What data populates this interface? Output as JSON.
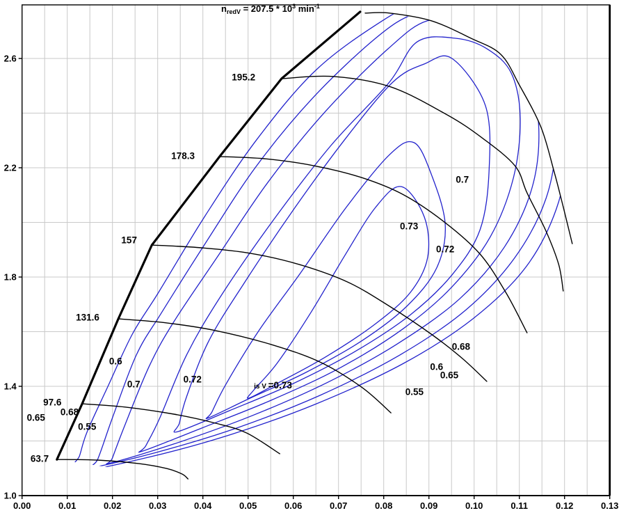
{
  "title": {
    "sym": "n",
    "sym_sub": "redV",
    "eq": " = 207.5 * 10",
    "exp": "3",
    "unit": " min",
    "unit_exp": "-1"
  },
  "chart_data": {
    "type": "line",
    "subtype": "compressor-map-contour",
    "title": "n_redV = 207.5 * 10^3 min^-1",
    "xlabel": "",
    "ylabel": "",
    "xlim": [
      0.0,
      0.13
    ],
    "ylim": [
      1.0,
      2.796
    ],
    "grid": "on",
    "x_tick_step": 0.01,
    "x_grid_step": 0.005,
    "y_grid_step": 0.2,
    "x_tick_labels": [
      "0.00",
      "0.01",
      "0.02",
      "0.03",
      "0.04",
      "0.05",
      "0.06",
      "0.07",
      "0.08",
      "0.09",
      "0.10",
      "0.11",
      "0.12",
      "0.13"
    ],
    "y_tick_values": [
      1.0,
      1.4,
      1.8,
      2.2,
      2.6
    ],
    "y_tick_labels": [
      "1.0",
      "1.4",
      "1.8",
      "2.2",
      "2.6"
    ],
    "colors": {
      "speed_line": "#000000",
      "surge_line": "#000000",
      "contour": "#2222cc",
      "grid": "#c9c9c9",
      "frame": "#000000",
      "text": "#000000"
    },
    "speed_unit": "10^3 min^-1",
    "max_speed_label_value": "207.5",
    "surge_line": [
      [
        0.0077,
        1.132
      ],
      [
        0.0133,
        1.336
      ],
      [
        0.0213,
        1.647
      ],
      [
        0.0287,
        1.917
      ],
      [
        0.0437,
        2.241
      ],
      [
        0.0574,
        2.526
      ],
      [
        0.0748,
        2.771
      ]
    ],
    "envelope": [
      [
        0.0077,
        1.132
      ],
      [
        0.0133,
        1.336
      ],
      [
        0.0213,
        1.647
      ],
      [
        0.0287,
        1.917
      ],
      [
        0.0437,
        2.241
      ],
      [
        0.0574,
        2.526
      ],
      [
        0.0748,
        2.771
      ],
      [
        0.0759,
        2.766
      ],
      [
        0.0813,
        2.766
      ],
      [
        0.0905,
        2.738
      ],
      [
        0.0993,
        2.674
      ],
      [
        0.1059,
        2.615
      ],
      [
        0.11,
        2.503
      ],
      [
        0.1148,
        2.348
      ],
      [
        0.1177,
        2.185
      ],
      [
        0.1197,
        2.057
      ],
      [
        0.1217,
        1.922
      ],
      [
        0.1197,
        1.749
      ],
      [
        0.1117,
        1.596
      ],
      [
        0.1028,
        1.418
      ],
      [
        0.0816,
        1.303
      ],
      [
        0.057,
        1.153
      ],
      [
        0.0367,
        1.061
      ]
    ],
    "speed_lines": [
      {
        "label": "63.7",
        "points": [
          [
            0.0077,
            1.132
          ],
          [
            0.0167,
            1.13
          ],
          [
            0.0259,
            1.117
          ],
          [
            0.032,
            1.099
          ],
          [
            0.0354,
            1.079
          ],
          [
            0.0367,
            1.061
          ]
        ]
      },
      {
        "label": "97.6",
        "points": [
          [
            0.0133,
            1.336
          ],
          [
            0.0228,
            1.324
          ],
          [
            0.0336,
            1.298
          ],
          [
            0.0428,
            1.265
          ],
          [
            0.0497,
            1.229
          ],
          [
            0.057,
            1.153
          ]
        ]
      },
      {
        "label": "131.6",
        "points": [
          [
            0.0213,
            1.647
          ],
          [
            0.032,
            1.632
          ],
          [
            0.0428,
            1.604
          ],
          [
            0.0551,
            1.553
          ],
          [
            0.0659,
            1.489
          ],
          [
            0.0751,
            1.397
          ],
          [
            0.0816,
            1.303
          ]
        ]
      },
      {
        "label": "157",
        "points": [
          [
            0.0287,
            1.917
          ],
          [
            0.0397,
            1.907
          ],
          [
            0.0505,
            1.887
          ],
          [
            0.0613,
            1.846
          ],
          [
            0.072,
            1.782
          ],
          [
            0.0813,
            1.693
          ],
          [
            0.0905,
            1.591
          ],
          [
            0.0974,
            1.502
          ],
          [
            0.1028,
            1.418
          ]
        ]
      },
      {
        "label": "178.3",
        "points": [
          [
            0.0437,
            2.241
          ],
          [
            0.0536,
            2.233
          ],
          [
            0.0644,
            2.208
          ],
          [
            0.0751,
            2.164
          ],
          [
            0.0844,
            2.101
          ],
          [
            0.0936,
            1.999
          ],
          [
            0.1013,
            1.884
          ],
          [
            0.107,
            1.744
          ],
          [
            0.1117,
            1.596
          ]
        ]
      },
      {
        "label": "195.2",
        "points": [
          [
            0.0574,
            2.526
          ],
          [
            0.069,
            2.534
          ],
          [
            0.0817,
            2.495
          ],
          [
            0.094,
            2.394
          ],
          [
            0.1017,
            2.31
          ],
          [
            0.109,
            2.208
          ],
          [
            0.1117,
            2.108
          ],
          [
            0.1159,
            1.968
          ],
          [
            0.1187,
            1.846
          ],
          [
            0.1197,
            1.749
          ]
        ]
      },
      {
        "label": "207.5",
        "points": [
          [
            0.0759,
            2.766
          ],
          [
            0.0813,
            2.766
          ],
          [
            0.0905,
            2.738
          ],
          [
            0.0993,
            2.674
          ],
          [
            0.1059,
            2.615
          ],
          [
            0.11,
            2.503
          ],
          [
            0.1148,
            2.348
          ],
          [
            0.1177,
            2.185
          ],
          [
            0.1197,
            2.057
          ],
          [
            0.1217,
            1.922
          ]
        ]
      }
    ],
    "efficiency_contours": [
      {
        "level": 0.73,
        "ring": [
          [
            0.0502,
            1.357
          ],
          [
            0.0567,
            1.413
          ],
          [
            0.0674,
            1.51
          ],
          [
            0.0782,
            1.629
          ],
          [
            0.0859,
            1.744
          ],
          [
            0.0897,
            1.871
          ],
          [
            0.089,
            2.019
          ],
          [
            0.0839,
            2.131
          ],
          [
            0.0782,
            2.055
          ],
          [
            0.0713,
            1.876
          ],
          [
            0.064,
            1.673
          ],
          [
            0.0564,
            1.484
          ],
          [
            0.0513,
            1.387
          ]
        ]
      },
      {
        "level": 0.72,
        "ring": [
          [
            0.0413,
            1.285
          ],
          [
            0.0505,
            1.357
          ],
          [
            0.0628,
            1.451
          ],
          [
            0.0751,
            1.566
          ],
          [
            0.0851,
            1.693
          ],
          [
            0.0917,
            1.833
          ],
          [
            0.0936,
            1.994
          ],
          [
            0.0905,
            2.177
          ],
          [
            0.0867,
            2.292
          ],
          [
            0.0813,
            2.248
          ],
          [
            0.0717,
            2.055
          ],
          [
            0.0616,
            1.815
          ],
          [
            0.0524,
            1.604
          ],
          [
            0.0451,
            1.408
          ],
          [
            0.042,
            1.306
          ]
        ]
      },
      {
        "level": 0.7,
        "ring": [
          [
            0.0344,
            1.234
          ],
          [
            0.0459,
            1.311
          ],
          [
            0.0597,
            1.408
          ],
          [
            0.0736,
            1.527
          ],
          [
            0.0859,
            1.662
          ],
          [
            0.0951,
            1.808
          ],
          [
            0.1013,
            1.973
          ],
          [
            0.1033,
            2.19
          ],
          [
            0.1025,
            2.427
          ],
          [
            0.0951,
            2.6
          ],
          [
            0.089,
            2.58
          ],
          [
            0.082,
            2.513
          ],
          [
            0.0717,
            2.31
          ],
          [
            0.0604,
            2.055
          ],
          [
            0.0493,
            1.782
          ],
          [
            0.0413,
            1.566
          ],
          [
            0.0364,
            1.362
          ],
          [
            0.0348,
            1.265
          ]
        ]
      },
      {
        "level": 0.68,
        "ring": [
          [
            0.0267,
            1.163
          ],
          [
            0.0397,
            1.247
          ],
          [
            0.0551,
            1.349
          ],
          [
            0.0705,
            1.469
          ],
          [
            0.0844,
            1.612
          ],
          [
            0.0951,
            1.764
          ],
          [
            0.1036,
            1.948
          ],
          [
            0.1087,
            2.164
          ],
          [
            0.1102,
            2.381
          ],
          [
            0.1082,
            2.547
          ],
          [
            0.1028,
            2.636
          ],
          [
            0.0959,
            2.674
          ],
          [
            0.0874,
            2.661
          ],
          [
            0.081,
            2.508
          ],
          [
            0.0682,
            2.279
          ],
          [
            0.0554,
            2.004
          ],
          [
            0.044,
            1.731
          ],
          [
            0.0364,
            1.515
          ],
          [
            0.0305,
            1.285
          ],
          [
            0.0274,
            1.183
          ]
        ]
      },
      {
        "level": 0.65,
        "ring": [
          [
            0.0197,
            1.12
          ],
          [
            0.0336,
            1.189
          ],
          [
            0.0505,
            1.29
          ],
          [
            0.0674,
            1.413
          ],
          [
            0.0828,
            1.553
          ],
          [
            0.0967,
            1.719
          ],
          [
            0.1067,
            1.91
          ],
          [
            0.1128,
            2.126
          ],
          [
            0.1143,
            2.343
          ],
          [
            0.112,
            2.521
          ],
          [
            0.1067,
            2.648
          ],
          [
            0.099,
            2.725
          ],
          [
            0.0897,
            2.738
          ],
          [
            0.081,
            2.636
          ],
          [
            0.0671,
            2.406
          ],
          [
            0.0544,
            2.147
          ],
          [
            0.0431,
            1.871
          ],
          [
            0.0336,
            1.637
          ],
          [
            0.0282,
            1.476
          ],
          [
            0.0228,
            1.26
          ],
          [
            0.02,
            1.138
          ]
        ]
      },
      {
        "level": 0.6,
        "ring": [
          [
            0.0151,
            1.102
          ],
          [
            0.0297,
            1.158
          ],
          [
            0.0474,
            1.247
          ],
          [
            0.0659,
            1.367
          ],
          [
            0.0836,
            1.515
          ],
          [
            0.0982,
            1.68
          ],
          [
            0.109,
            1.871
          ],
          [
            0.1159,
            2.088
          ],
          [
            0.1182,
            2.317
          ],
          [
            0.1167,
            2.508
          ],
          [
            0.112,
            2.648
          ],
          [
            0.1051,
            2.743
          ],
          [
            0.0959,
            2.783
          ],
          [
            0.0867,
            2.763
          ],
          [
            0.0782,
            2.674
          ],
          [
            0.0644,
            2.457
          ],
          [
            0.0517,
            2.203
          ],
          [
            0.0405,
            1.922
          ],
          [
            0.0308,
            1.668
          ],
          [
            0.0253,
            1.515
          ],
          [
            0.02,
            1.285
          ],
          [
            0.0167,
            1.132
          ]
        ]
      },
      {
        "level": 0.55,
        "ring": [
          [
            0.0113,
            1.087
          ],
          [
            0.0274,
            1.138
          ],
          [
            0.0459,
            1.222
          ],
          [
            0.0651,
            1.336
          ],
          [
            0.0844,
            1.484
          ],
          [
            0.0997,
            1.647
          ],
          [
            0.1113,
            1.833
          ],
          [
            0.1182,
            2.05
          ],
          [
            0.121,
            2.292
          ],
          [
            0.1197,
            2.496
          ],
          [
            0.1151,
            2.656
          ],
          [
            0.1082,
            2.763
          ],
          [
            0.0985,
            2.814
          ],
          [
            0.0887,
            2.809
          ],
          [
            0.0797,
            2.738
          ],
          [
            0.0651,
            2.559
          ],
          [
            0.052,
            2.305
          ],
          [
            0.0405,
            2.024
          ],
          [
            0.0302,
            1.744
          ],
          [
            0.0244,
            1.591
          ],
          [
            0.019,
            1.4
          ],
          [
            0.0144,
            1.234
          ],
          [
            0.0127,
            1.145
          ]
        ]
      }
    ],
    "annotations": [
      {
        "t": "195.2",
        "v": 0.049,
        "p": 2.531
      },
      {
        "t": "178.3",
        "v": 0.0356,
        "p": 2.243
      },
      {
        "t": "157",
        "v": 0.0237,
        "p": 1.935
      },
      {
        "t": "131.6",
        "v": 0.0145,
        "p": 1.652
      },
      {
        "t": "97.6",
        "v": 0.0067,
        "p": 1.341
      },
      {
        "t": "63.7",
        "v": 0.0039,
        "p": 1.135
      },
      {
        "t": "0.65",
        "v": 0.0031,
        "p": 1.285
      },
      {
        "t": "0.68",
        "v": 0.0105,
        "p": 1.306
      },
      {
        "t": "0.55",
        "v": 0.0144,
        "p": 1.252
      },
      {
        "t": "0.6",
        "v": 0.0207,
        "p": 1.492
      },
      {
        "t": "0.7",
        "v": 0.0247,
        "p": 1.408
      },
      {
        "t": "0.72",
        "v": 0.0377,
        "p": 1.425
      },
      {
        "t": "=0.73",
        "pre": "is V ",
        "v": 0.0513,
        "p": 1.404
      },
      {
        "t": "0.7",
        "v": 0.0974,
        "p": 2.157
      },
      {
        "t": "0.73",
        "v": 0.0856,
        "p": 1.986
      },
      {
        "t": "0.72",
        "v": 0.0936,
        "p": 1.902
      },
      {
        "t": "0.68",
        "v": 0.0971,
        "p": 1.545
      },
      {
        "t": "0.6",
        "v": 0.0917,
        "p": 1.471
      },
      {
        "t": "0.65",
        "v": 0.0945,
        "p": 1.441
      },
      {
        "t": "0.55",
        "v": 0.0868,
        "p": 1.38
      }
    ]
  }
}
